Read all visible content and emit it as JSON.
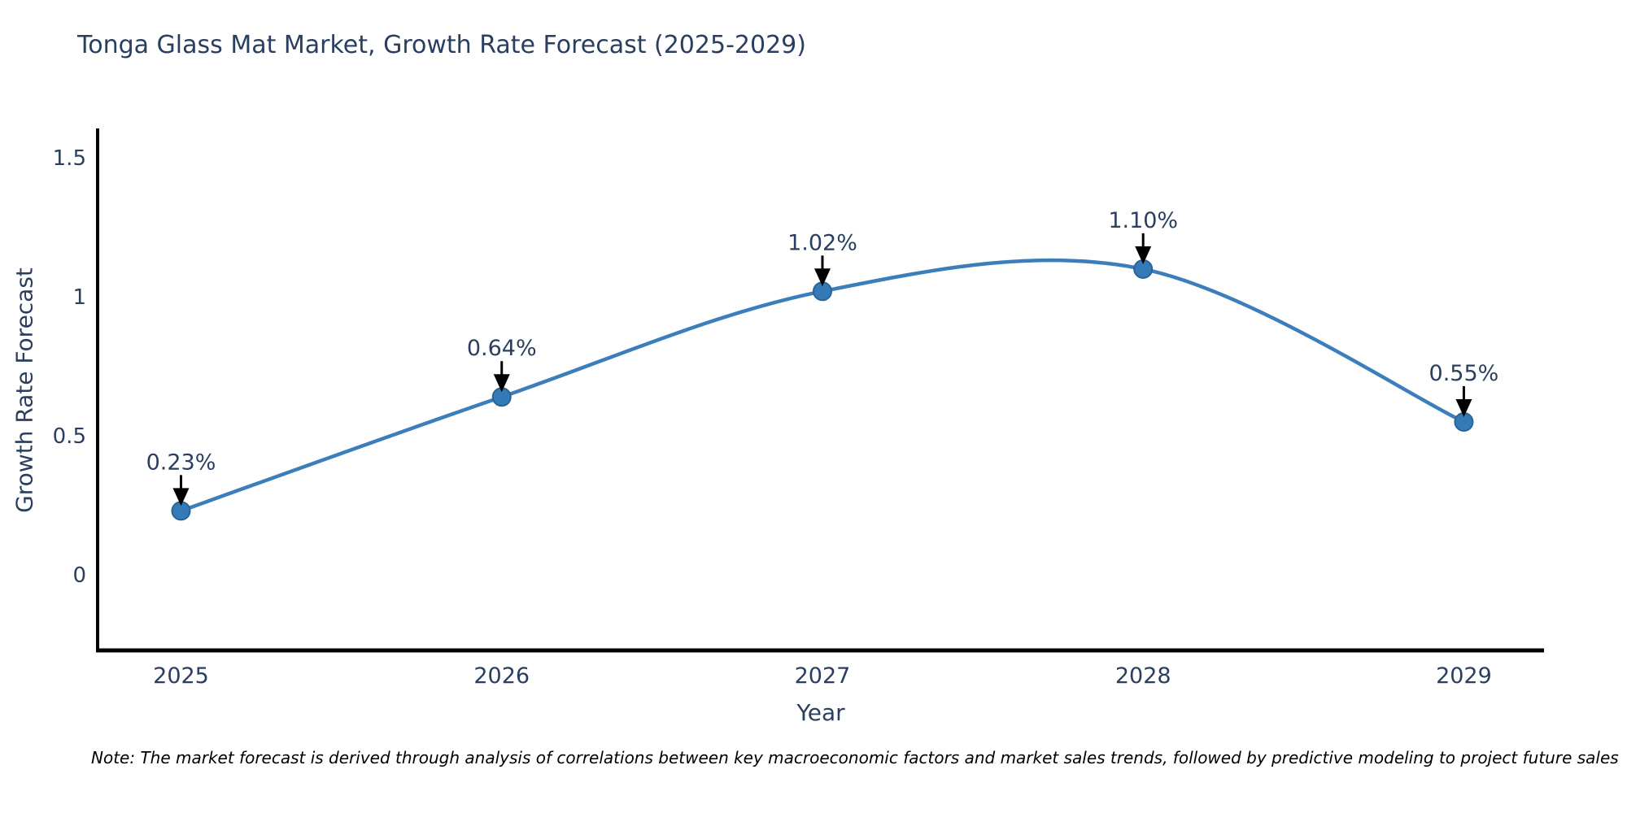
{
  "title": "Tonga Glass Mat Market, Growth Rate Forecast (2025-2029)",
  "note": "Note: The market forecast is derived through analysis of correlations between key macroeconomic factors and market sales trends, followed by predictive modeling to project future sales",
  "chart_data": {
    "type": "line",
    "line_shape": "spline",
    "title": "Tonga Glass Mat Market, Growth Rate Forecast (2025-2029)",
    "xlabel": "Year",
    "ylabel": "Growth Rate Forecast",
    "categories": [
      "2025",
      "2026",
      "2027",
      "2028",
      "2029"
    ],
    "x": [
      2025,
      2026,
      2027,
      2028,
      2029
    ],
    "values": [
      0.23,
      0.64,
      1.02,
      1.1,
      0.55
    ],
    "point_labels": [
      "0.23%",
      "0.64%",
      "1.02%",
      "1.10%",
      "0.55%"
    ],
    "yticks": [
      0,
      0.5,
      1,
      1.5
    ],
    "ytick_labels": [
      "0",
      "0.5",
      "1",
      "1.5"
    ],
    "ylim": [
      -0.272,
      1.6
    ],
    "xlim": [
      2024.74,
      2029.25
    ],
    "grid": false,
    "legend": "none",
    "line_color": "#3c7ebc",
    "marker_color": "#347ab6",
    "marker_edge_color": "#2a6496",
    "axis_color": "#000000",
    "text_color": "#2a3f5f",
    "annotation_arrow_color": "#000000"
  }
}
